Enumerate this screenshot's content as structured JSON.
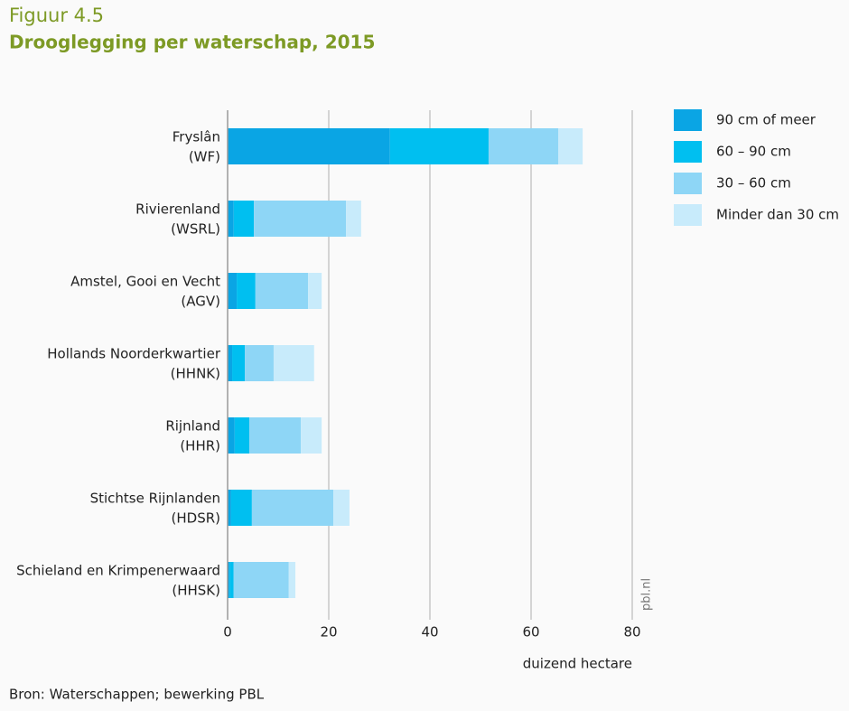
{
  "chart_data": {
    "type": "bar",
    "orientation": "horizontal",
    "stacked": true,
    "title": "Figuur 4.5",
    "subtitle": "Drooglegging per waterschap, 2015",
    "x_label": "duizend hectare",
    "source": "Bron: Waterschappen; bewerking PBL",
    "watermark": "pbl.nl",
    "categories": [
      [
        "Fryslân",
        "(WF)"
      ],
      [
        "Rivierenland",
        "(WSRL)"
      ],
      [
        "Amstel, Gooi en Vecht",
        "(AGV)"
      ],
      [
        "Hollands Noorderkwartier",
        "(HHNK)"
      ],
      [
        "Rijnland",
        "(HHR)"
      ],
      [
        "Stichtse Rijnlanden",
        "(HDSR)"
      ],
      [
        "Schieland en Krimpenerwaard",
        "(HHSK)"
      ]
    ],
    "series": [
      {
        "name": "90 cm of meer",
        "color": "#0aa5e4",
        "values": [
          32.1,
          1.2,
          1.8,
          0.9,
          1.4,
          0.7,
          0.4
        ]
      },
      {
        "name": "60 – 90 cm",
        "color": "#00bff0",
        "values": [
          19.5,
          4.0,
          3.7,
          2.5,
          2.9,
          4.1,
          0.8
        ]
      },
      {
        "name": "30 – 60 cm",
        "color": "#8ed6f6",
        "values": [
          13.8,
          18.2,
          10.4,
          5.7,
          10.2,
          16.1,
          10.9
        ]
      },
      {
        "name": "Minder dan 30 cm",
        "color": "#c8ebfb",
        "values": [
          4.8,
          3.0,
          2.7,
          8.0,
          4.1,
          3.2,
          1.3
        ]
      }
    ],
    "xlim": [
      0,
      80
    ],
    "xticks": [
      0,
      20,
      40,
      60,
      80
    ],
    "grid": true,
    "legend": "right"
  }
}
